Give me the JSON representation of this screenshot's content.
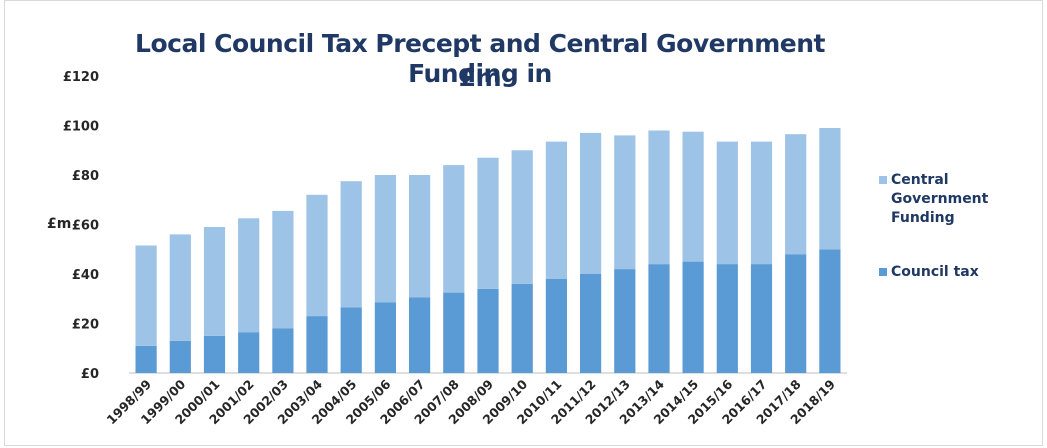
{
  "chart_data": {
    "type": "bar",
    "stacked": true,
    "title_line1": "Local Council Tax Precept and Central Government Funding in",
    "title_line2": "£m",
    "ylabel": "£m",
    "ylim": [
      0,
      120
    ],
    "yticks": [
      "£0",
      "£20",
      "£40",
      "£60",
      "£80",
      "£100",
      "£120"
    ],
    "grid": false,
    "legend_position": "right",
    "categories": [
      "1998/99",
      "1999/00",
      "2000/01",
      "2001/02",
      "2002/03",
      "2003/04",
      "2004/05",
      "2005/06",
      "2006/07",
      "2007/08",
      "2008/09",
      "2009/10",
      "2010/11",
      "2011/12",
      "2012/13",
      "2013/14",
      "2014/15",
      "2015/16",
      "2016/17",
      "2017/18",
      "2018/19"
    ],
    "series": [
      {
        "name": "Council tax",
        "color": "#5b9bd5",
        "values": [
          11,
          13,
          15,
          16.5,
          18,
          23,
          26.5,
          28.5,
          30.5,
          32.5,
          34,
          36,
          38,
          40,
          42,
          44,
          45,
          44,
          44,
          48,
          50
        ]
      },
      {
        "name": "Central Government Funding",
        "color": "#9dc3e6",
        "values": [
          40.5,
          43,
          44,
          46,
          47.5,
          49,
          51,
          51.5,
          49.5,
          51.5,
          53,
          54,
          55.5,
          57,
          54,
          54,
          52.5,
          49.5,
          49.5,
          48.5,
          49
        ]
      }
    ]
  }
}
